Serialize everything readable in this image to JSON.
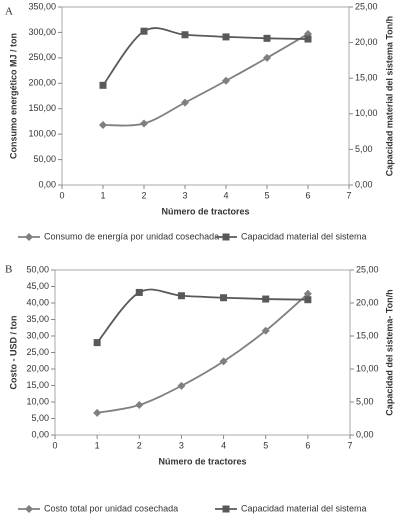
{
  "chart_data": [
    {
      "type": "line",
      "panel": "A",
      "xlabel": "Número de tractores",
      "ylabel": "Consumo energético MJ / ton",
      "y2label": "Capacidad material del sistema Ton/h",
      "x": [
        1,
        2,
        3,
        4,
        5,
        6
      ],
      "series": [
        {
          "name": "Consumo de energía por unidad cosechada",
          "color": "#7f7f7f",
          "marker": "diamond",
          "values": [
            118,
            121,
            162,
            205,
            250,
            297
          ]
        },
        {
          "name": "Capacidad material del sistema",
          "color": "#595959",
          "marker": "square",
          "axis": "y2",
          "values": [
            14.0,
            21.6,
            21.1,
            20.8,
            20.6,
            20.5
          ]
        }
      ],
      "xlim": [
        0,
        7
      ],
      "xticks": [
        0,
        1,
        2,
        3,
        4,
        5,
        6,
        7
      ],
      "ylim": [
        0,
        350
      ],
      "yticks": [
        {
          "value": 0,
          "label": "0,00"
        },
        {
          "value": 50,
          "label": "50,00"
        },
        {
          "value": 100,
          "label": "100,00"
        },
        {
          "value": 150,
          "label": "150,00"
        },
        {
          "value": 200,
          "label": "200,00"
        },
        {
          "value": 250,
          "label": "250,00"
        },
        {
          "value": 300,
          "label": "300,00"
        },
        {
          "value": 350,
          "label": "350,00"
        }
      ],
      "y2lim": [
        0,
        25
      ],
      "y2ticks": [
        {
          "value": 0,
          "label": "0,00"
        },
        {
          "value": 5,
          "label": "5,00"
        },
        {
          "value": 10,
          "label": "10,00"
        },
        {
          "value": 15,
          "label": "15,00"
        },
        {
          "value": 20,
          "label": "20,00"
        },
        {
          "value": 25,
          "label": "25,00"
        }
      ],
      "legend": "bottom"
    },
    {
      "type": "line",
      "panel": "B",
      "xlabel": "Número de tractores",
      "ylabel": "Costo - USD / ton",
      "y2label": "Capacidad del sistema- Ton/h",
      "x": [
        1,
        2,
        3,
        4,
        5,
        6
      ],
      "series": [
        {
          "name": "Costo total por unidad cosechada",
          "color": "#7f7f7f",
          "marker": "diamond",
          "values": [
            6.7,
            9.1,
            14.9,
            22.3,
            31.6,
            42.8
          ]
        },
        {
          "name": "Capacidad material del sistema",
          "color": "#595959",
          "marker": "square",
          "axis": "y2",
          "values": [
            14.0,
            21.6,
            21.1,
            20.8,
            20.6,
            20.5
          ]
        }
      ],
      "xlim": [
        0,
        7
      ],
      "xticks": [
        0,
        1,
        2,
        3,
        4,
        5,
        6,
        7
      ],
      "ylim": [
        0,
        50
      ],
      "yticks": [
        {
          "value": 0,
          "label": "0,00"
        },
        {
          "value": 5,
          "label": "5,00"
        },
        {
          "value": 10,
          "label": "10,00"
        },
        {
          "value": 15,
          "label": "15,00"
        },
        {
          "value": 20,
          "label": "20,00"
        },
        {
          "value": 25,
          "label": "25,00"
        },
        {
          "value": 30,
          "label": "30,00"
        },
        {
          "value": 35,
          "label": "35,00"
        },
        {
          "value": 40,
          "label": "40,00"
        },
        {
          "value": 45,
          "label": "45,00"
        },
        {
          "value": 50,
          "label": "50,00"
        }
      ],
      "y2lim": [
        0,
        25
      ],
      "y2ticks": [
        {
          "value": 0,
          "label": "0,00"
        },
        {
          "value": 5,
          "label": "5,00"
        },
        {
          "value": 10,
          "label": "10,00"
        },
        {
          "value": 15,
          "label": "15,00"
        },
        {
          "value": 20,
          "label": "20,00"
        },
        {
          "value": 25,
          "label": "25,00"
        }
      ],
      "legend": "bottom"
    }
  ]
}
